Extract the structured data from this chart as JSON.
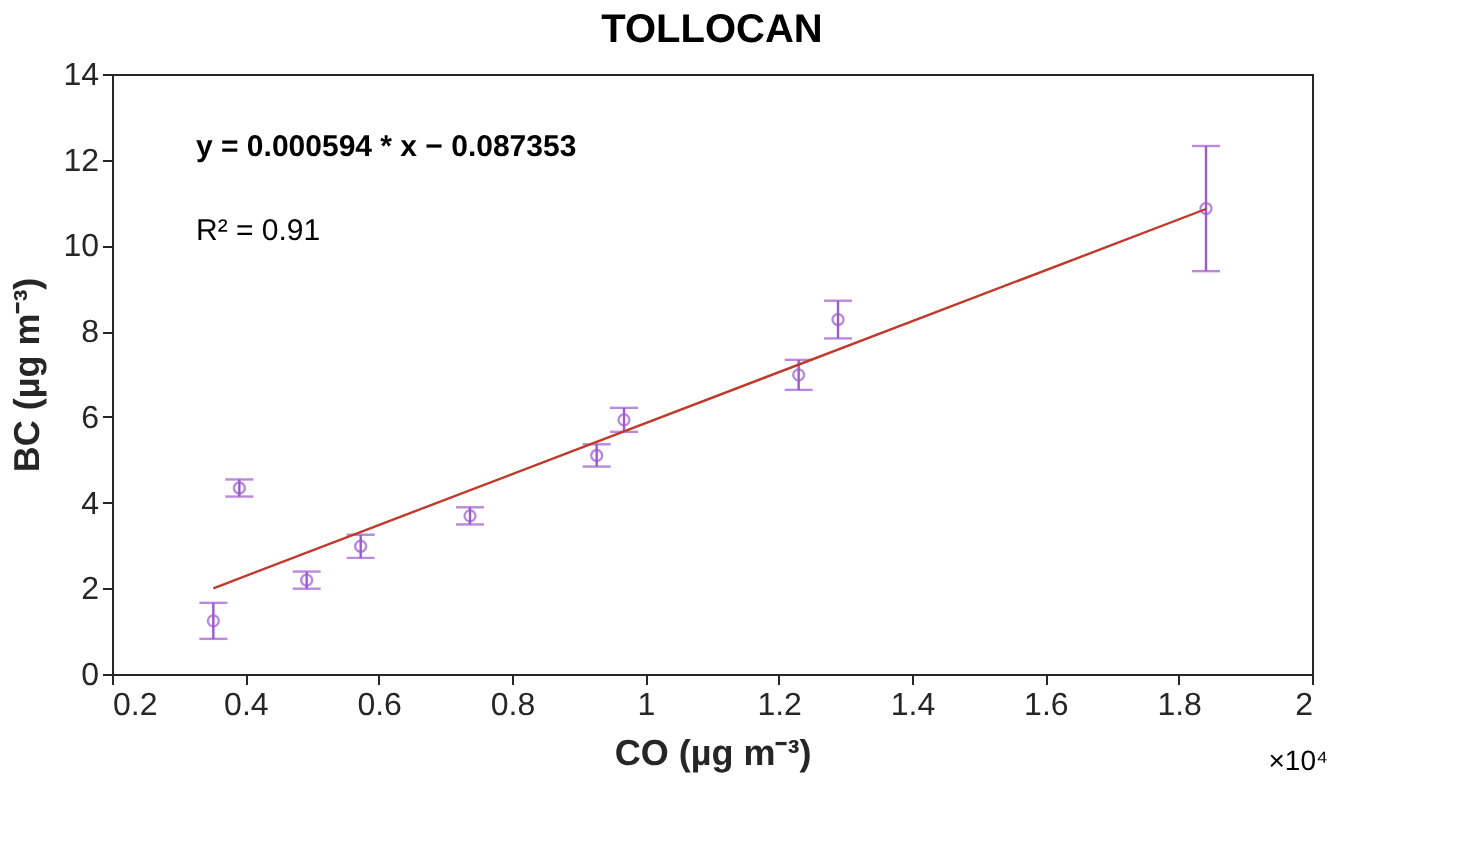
{
  "chart_data": {
    "type": "scatter",
    "title": "TOLLOCAN",
    "xlabel": "CO (µg m⁻³)",
    "ylabel": "BC (µg m⁻³)",
    "annotations": [
      "y = 0.000594 * x  − 0.087353",
      "R² = 0.91",
      "×10⁴"
    ],
    "xlim": [
      0.2,
      2
    ],
    "xticks": [
      0.2,
      0.4,
      0.6,
      0.8,
      1,
      1.2,
      1.4,
      1.6,
      1.8,
      2
    ],
    "ylim": [
      0,
      14
    ],
    "yticks": [
      0,
      2,
      4,
      6,
      8,
      10,
      12,
      14
    ],
    "grid": false,
    "series": [
      {
        "type": "scatter",
        "color": "#9b59d0",
        "marker": "circle",
        "x": [
          0.352,
          0.391,
          0.492,
          0.573,
          0.737,
          0.927,
          0.968,
          1.23,
          1.289,
          1.841
        ],
        "values": [
          1.24,
          4.34,
          2.19,
          2.98,
          3.69,
          5.1,
          5.93,
          6.98,
          8.27,
          10.86
        ],
        "errors": [
          0.42,
          0.2,
          0.2,
          0.27,
          0.2,
          0.26,
          0.28,
          0.35,
          0.44,
          1.46
        ]
      },
      {
        "type": "line",
        "color": "#c0392b",
        "line_style": "solid",
        "x": [
          0.352,
          1.841
        ],
        "values": [
          2.0,
          10.85
        ]
      }
    ]
  }
}
